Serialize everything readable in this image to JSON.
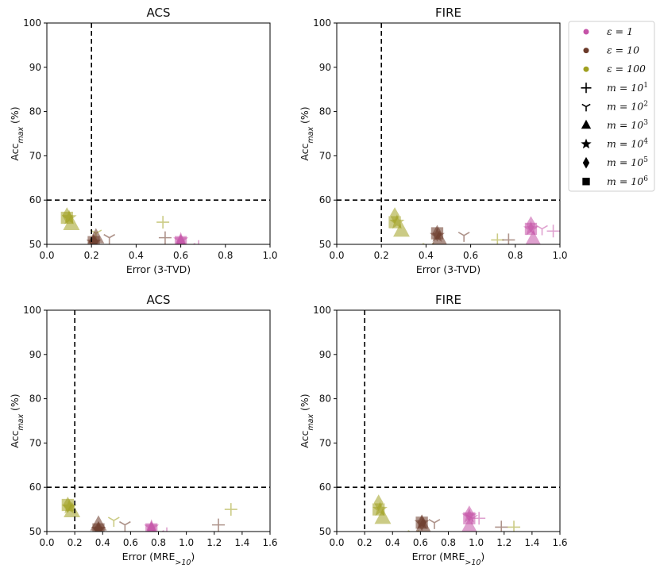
{
  "chart_data": {
    "type": "scatter",
    "series_colors": {
      "eps1": "#c553a8",
      "eps10": "#6b3a2a",
      "eps100": "#a0a020"
    },
    "marker_legend": [
      "plus",
      "tri_down",
      "triangle",
      "star",
      "diamond",
      "square"
    ],
    "legend": {
      "placement": "top-right-outside",
      "color_items": [
        {
          "key": "eps1",
          "label": "ε = 1"
        },
        {
          "key": "eps10",
          "label": "ε = 10"
        },
        {
          "key": "eps100",
          "label": "ε = 100"
        }
      ],
      "marker_items": [
        {
          "marker": "plus",
          "label": "m = 10",
          "sup": "1"
        },
        {
          "marker": "tri_down",
          "label": "m = 10",
          "sup": "2"
        },
        {
          "marker": "triangle",
          "label": "m = 10",
          "sup": "3"
        },
        {
          "marker": "star",
          "label": "m = 10",
          "sup": "4"
        },
        {
          "marker": "diamond",
          "label": "m = 10",
          "sup": "5"
        },
        {
          "marker": "square",
          "label": "m = 10",
          "sup": "6"
        }
      ]
    },
    "panels": [
      {
        "title": "ACS",
        "xlabel": "Error (3-TVD)",
        "xlabel_sub": "",
        "ylabel": "Acc",
        "ylabel_sub": "max",
        "ylabel_suffix": " (%)",
        "xlim": [
          0,
          1.0
        ],
        "ylim": [
          50,
          100
        ],
        "xticks": [
          0.0,
          0.2,
          0.4,
          0.6,
          0.8,
          1.0
        ],
        "xtick_labels": [
          "0.0",
          "0.2",
          "0.4",
          "0.6",
          "0.8",
          "1.0"
        ],
        "yticks": [
          50,
          60,
          70,
          80,
          90,
          100
        ],
        "ytick_labels": [
          "50",
          "60",
          "70",
          "80",
          "90",
          "100"
        ],
        "vline": 0.2,
        "hline": 60,
        "points": [
          {
            "eps": "eps100",
            "m": "plus",
            "x": 0.52,
            "y": 55
          },
          {
            "eps": "eps100",
            "m": "tri_down",
            "x": 0.22,
            "y": 52.5
          },
          {
            "eps": "eps100",
            "m": "triangle",
            "x": 0.11,
            "y": 54.5
          },
          {
            "eps": "eps100",
            "m": "star",
            "x": 0.1,
            "y": 56
          },
          {
            "eps": "eps100",
            "m": "diamond",
            "x": 0.09,
            "y": 56.5
          },
          {
            "eps": "eps100",
            "m": "square",
            "x": 0.09,
            "y": 56
          },
          {
            "eps": "eps10",
            "m": "plus",
            "x": 0.53,
            "y": 51.5
          },
          {
            "eps": "eps10",
            "m": "tri_down",
            "x": 0.28,
            "y": 51.5
          },
          {
            "eps": "eps10",
            "m": "triangle",
            "x": 0.22,
            "y": 51.5
          },
          {
            "eps": "eps10",
            "m": "star",
            "x": 0.21,
            "y": 50.5
          },
          {
            "eps": "eps10",
            "m": "diamond",
            "x": 0.21,
            "y": 50.5
          },
          {
            "eps": "eps10",
            "m": "square",
            "x": 0.21,
            "y": 50.5
          },
          {
            "eps": "eps1",
            "m": "plus",
            "x": 0.68,
            "y": 49.5
          },
          {
            "eps": "eps1",
            "m": "tri_down",
            "x": 0.64,
            "y": 49.5
          },
          {
            "eps": "eps1",
            "m": "triangle",
            "x": 0.6,
            "y": 50
          },
          {
            "eps": "eps1",
            "m": "star",
            "x": 0.6,
            "y": 51
          },
          {
            "eps": "eps1",
            "m": "diamond",
            "x": 0.6,
            "y": 50.5
          },
          {
            "eps": "eps1",
            "m": "square",
            "x": 0.6,
            "y": 50.5
          }
        ]
      },
      {
        "title": "FIRE",
        "xlabel": "Error (3-TVD)",
        "xlabel_sub": "",
        "ylabel": "Acc",
        "ylabel_sub": "max",
        "ylabel_suffix": " (%)",
        "xlim": [
          0,
          1.0
        ],
        "ylim": [
          50,
          100
        ],
        "xticks": [
          0.0,
          0.2,
          0.4,
          0.6,
          0.8,
          1.0
        ],
        "xtick_labels": [
          "0.0",
          "0.2",
          "0.4",
          "0.6",
          "0.8",
          "1.0"
        ],
        "yticks": [
          50,
          60,
          70,
          80,
          90,
          100
        ],
        "ytick_labels": [
          "50",
          "60",
          "70",
          "80",
          "90",
          "100"
        ],
        "vline": 0.2,
        "hline": 60,
        "points": [
          {
            "eps": "eps100",
            "m": "plus",
            "x": 0.72,
            "y": 51
          },
          {
            "eps": "eps100",
            "m": "tri_down",
            "x": 0.41,
            "y": 49.5
          },
          {
            "eps": "eps100",
            "m": "triangle",
            "x": 0.29,
            "y": 53
          },
          {
            "eps": "eps100",
            "m": "star",
            "x": 0.27,
            "y": 55
          },
          {
            "eps": "eps100",
            "m": "diamond",
            "x": 0.26,
            "y": 56.5
          },
          {
            "eps": "eps100",
            "m": "square",
            "x": 0.26,
            "y": 55
          },
          {
            "eps": "eps10",
            "m": "plus",
            "x": 0.77,
            "y": 51
          },
          {
            "eps": "eps10",
            "m": "tri_down",
            "x": 0.57,
            "y": 52
          },
          {
            "eps": "eps10",
            "m": "triangle",
            "x": 0.46,
            "y": 51
          },
          {
            "eps": "eps10",
            "m": "star",
            "x": 0.45,
            "y": 52
          },
          {
            "eps": "eps10",
            "m": "diamond",
            "x": 0.45,
            "y": 52.5
          },
          {
            "eps": "eps10",
            "m": "square",
            "x": 0.45,
            "y": 52.5
          },
          {
            "eps": "eps1",
            "m": "plus",
            "x": 0.97,
            "y": 53
          },
          {
            "eps": "eps1",
            "m": "tri_down",
            "x": 0.92,
            "y": 53.5
          },
          {
            "eps": "eps1",
            "m": "triangle",
            "x": 0.88,
            "y": 51
          },
          {
            "eps": "eps1",
            "m": "star",
            "x": 0.87,
            "y": 53.5
          },
          {
            "eps": "eps1",
            "m": "diamond",
            "x": 0.87,
            "y": 54.5
          },
          {
            "eps": "eps1",
            "m": "square",
            "x": 0.87,
            "y": 53.5
          }
        ]
      },
      {
        "title": "ACS",
        "xlabel": "Error (MRE",
        "xlabel_sub": ">10",
        "ylabel": "Acc",
        "ylabel_sub": "max",
        "ylabel_suffix": " (%)",
        "xlim": [
          0,
          1.6
        ],
        "ylim": [
          50,
          100
        ],
        "xticks": [
          0.0,
          0.2,
          0.4,
          0.6,
          0.8,
          1.0,
          1.2,
          1.4,
          1.6
        ],
        "xtick_labels": [
          "0.0",
          "0.2",
          "0.4",
          "0.6",
          "0.8",
          "1.0",
          "1.2",
          "1.4",
          "1.6"
        ],
        "yticks": [
          50,
          60,
          70,
          80,
          90,
          100
        ],
        "ytick_labels": [
          "50",
          "60",
          "70",
          "80",
          "90",
          "100"
        ],
        "vline": 0.2,
        "hline": 60,
        "points": [
          {
            "eps": "eps100",
            "m": "plus",
            "x": 1.32,
            "y": 55
          },
          {
            "eps": "eps100",
            "m": "tri_down",
            "x": 0.48,
            "y": 52.5
          },
          {
            "eps": "eps100",
            "m": "triangle",
            "x": 0.18,
            "y": 54.5
          },
          {
            "eps": "eps100",
            "m": "star",
            "x": 0.16,
            "y": 55.5
          },
          {
            "eps": "eps100",
            "m": "diamond",
            "x": 0.15,
            "y": 56
          },
          {
            "eps": "eps100",
            "m": "square",
            "x": 0.15,
            "y": 56
          },
          {
            "eps": "eps10",
            "m": "plus",
            "x": 1.23,
            "y": 51.5
          },
          {
            "eps": "eps10",
            "m": "tri_down",
            "x": 0.56,
            "y": 51.5
          },
          {
            "eps": "eps10",
            "m": "triangle",
            "x": 0.37,
            "y": 51.5
          },
          {
            "eps": "eps10",
            "m": "star",
            "x": 0.37,
            "y": 50.5
          },
          {
            "eps": "eps10",
            "m": "diamond",
            "x": 0.37,
            "y": 50.5
          },
          {
            "eps": "eps10",
            "m": "square",
            "x": 0.37,
            "y": 50.5
          },
          {
            "eps": "eps1",
            "m": "plus",
            "x": 0.86,
            "y": 49.5
          },
          {
            "eps": "eps1",
            "m": "tri_down",
            "x": 0.8,
            "y": 49.5
          },
          {
            "eps": "eps1",
            "m": "triangle",
            "x": 0.75,
            "y": 50
          },
          {
            "eps": "eps1",
            "m": "star",
            "x": 0.75,
            "y": 51
          },
          {
            "eps": "eps1",
            "m": "diamond",
            "x": 0.75,
            "y": 50.5
          },
          {
            "eps": "eps1",
            "m": "square",
            "x": 0.75,
            "y": 50.5
          }
        ]
      },
      {
        "title": "FIRE",
        "xlabel": "Error (MRE",
        "xlabel_sub": ">10",
        "ylabel": "Acc",
        "ylabel_sub": "max",
        "ylabel_suffix": " (%)",
        "xlim": [
          0,
          1.6
        ],
        "ylim": [
          50,
          100
        ],
        "xticks": [
          0.0,
          0.2,
          0.4,
          0.6,
          0.8,
          1.0,
          1.2,
          1.4,
          1.6
        ],
        "xtick_labels": [
          "0.0",
          "0.2",
          "0.4",
          "0.6",
          "0.8",
          "1.0",
          "1.2",
          "1.4",
          "1.6"
        ],
        "yticks": [
          50,
          60,
          70,
          80,
          90,
          100
        ],
        "ytick_labels": [
          "50",
          "60",
          "70",
          "80",
          "90",
          "100"
        ],
        "vline": 0.2,
        "hline": 60,
        "points": [
          {
            "eps": "eps100",
            "m": "plus",
            "x": 1.27,
            "y": 51
          },
          {
            "eps": "eps100",
            "m": "tri_down",
            "x": 0.55,
            "y": 49.5
          },
          {
            "eps": "eps100",
            "m": "triangle",
            "x": 0.33,
            "y": 53
          },
          {
            "eps": "eps100",
            "m": "star",
            "x": 0.31,
            "y": 55
          },
          {
            "eps": "eps100",
            "m": "diamond",
            "x": 0.3,
            "y": 56.5
          },
          {
            "eps": "eps100",
            "m": "square",
            "x": 0.3,
            "y": 55
          },
          {
            "eps": "eps10",
            "m": "plus",
            "x": 1.18,
            "y": 51
          },
          {
            "eps": "eps10",
            "m": "tri_down",
            "x": 0.7,
            "y": 52
          },
          {
            "eps": "eps10",
            "m": "triangle",
            "x": 0.62,
            "y": 51
          },
          {
            "eps": "eps10",
            "m": "star",
            "x": 0.61,
            "y": 52
          },
          {
            "eps": "eps10",
            "m": "diamond",
            "x": 0.61,
            "y": 52
          },
          {
            "eps": "eps10",
            "m": "square",
            "x": 0.61,
            "y": 52
          },
          {
            "eps": "eps1",
            "m": "plus",
            "x": 1.02,
            "y": 53
          },
          {
            "eps": "eps1",
            "m": "tri_down",
            "x": 0.97,
            "y": 53
          },
          {
            "eps": "eps1",
            "m": "triangle",
            "x": 0.95,
            "y": 51
          },
          {
            "eps": "eps1",
            "m": "star",
            "x": 0.95,
            "y": 53.5
          },
          {
            "eps": "eps1",
            "m": "diamond",
            "x": 0.95,
            "y": 54
          },
          {
            "eps": "eps1",
            "m": "square",
            "x": 0.95,
            "y": 53
          }
        ]
      }
    ]
  }
}
